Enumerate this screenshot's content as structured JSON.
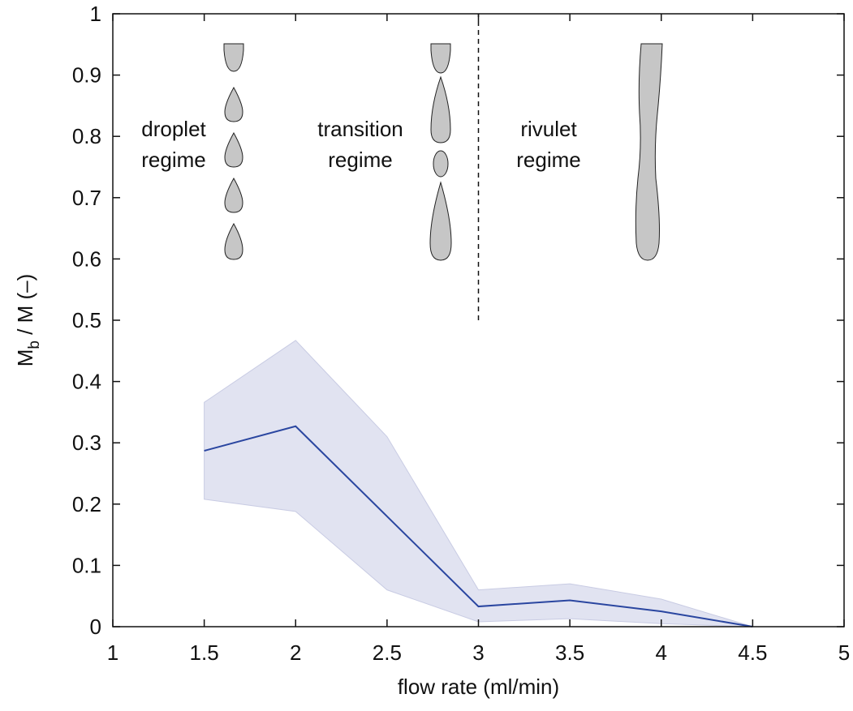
{
  "chart_data": {
    "type": "line",
    "xlabel": "flow rate (ml/min)",
    "ylabel": {
      "main": "M",
      "sub": "b",
      "rest": " / M (–)"
    },
    "x": [
      1.5,
      2,
      2.5,
      3,
      3.5,
      4,
      4.5
    ],
    "series": [
      {
        "color": "#2a46a0",
        "values": [
          0.287,
          0.327,
          0.18,
          0.033,
          0.043,
          0.025,
          0
        ],
        "upper": [
          0.366,
          0.467,
          0.31,
          0.06,
          0.07,
          0.045,
          0
        ],
        "lower": [
          0.208,
          0.188,
          0.06,
          0.008,
          0.013,
          0.005,
          0
        ],
        "band_color": "#e1e3f1"
      }
    ],
    "xlim": [
      1,
      5
    ],
    "ylim": [
      0,
      1
    ],
    "xticks": [
      1,
      1.5,
      2,
      2.5,
      3,
      3.5,
      4,
      4.5,
      5
    ],
    "yticks": [
      0,
      0.1,
      0.2,
      0.3,
      0.4,
      0.5,
      0.6,
      0.7,
      0.8,
      0.9,
      1
    ],
    "vline": {
      "x": 3,
      "from": 0.5,
      "to": 1
    },
    "annotations": [
      [
        "droplet",
        "regime"
      ],
      [
        "transition",
        "regime"
      ],
      [
        "rivulet",
        "regime"
      ]
    ]
  }
}
